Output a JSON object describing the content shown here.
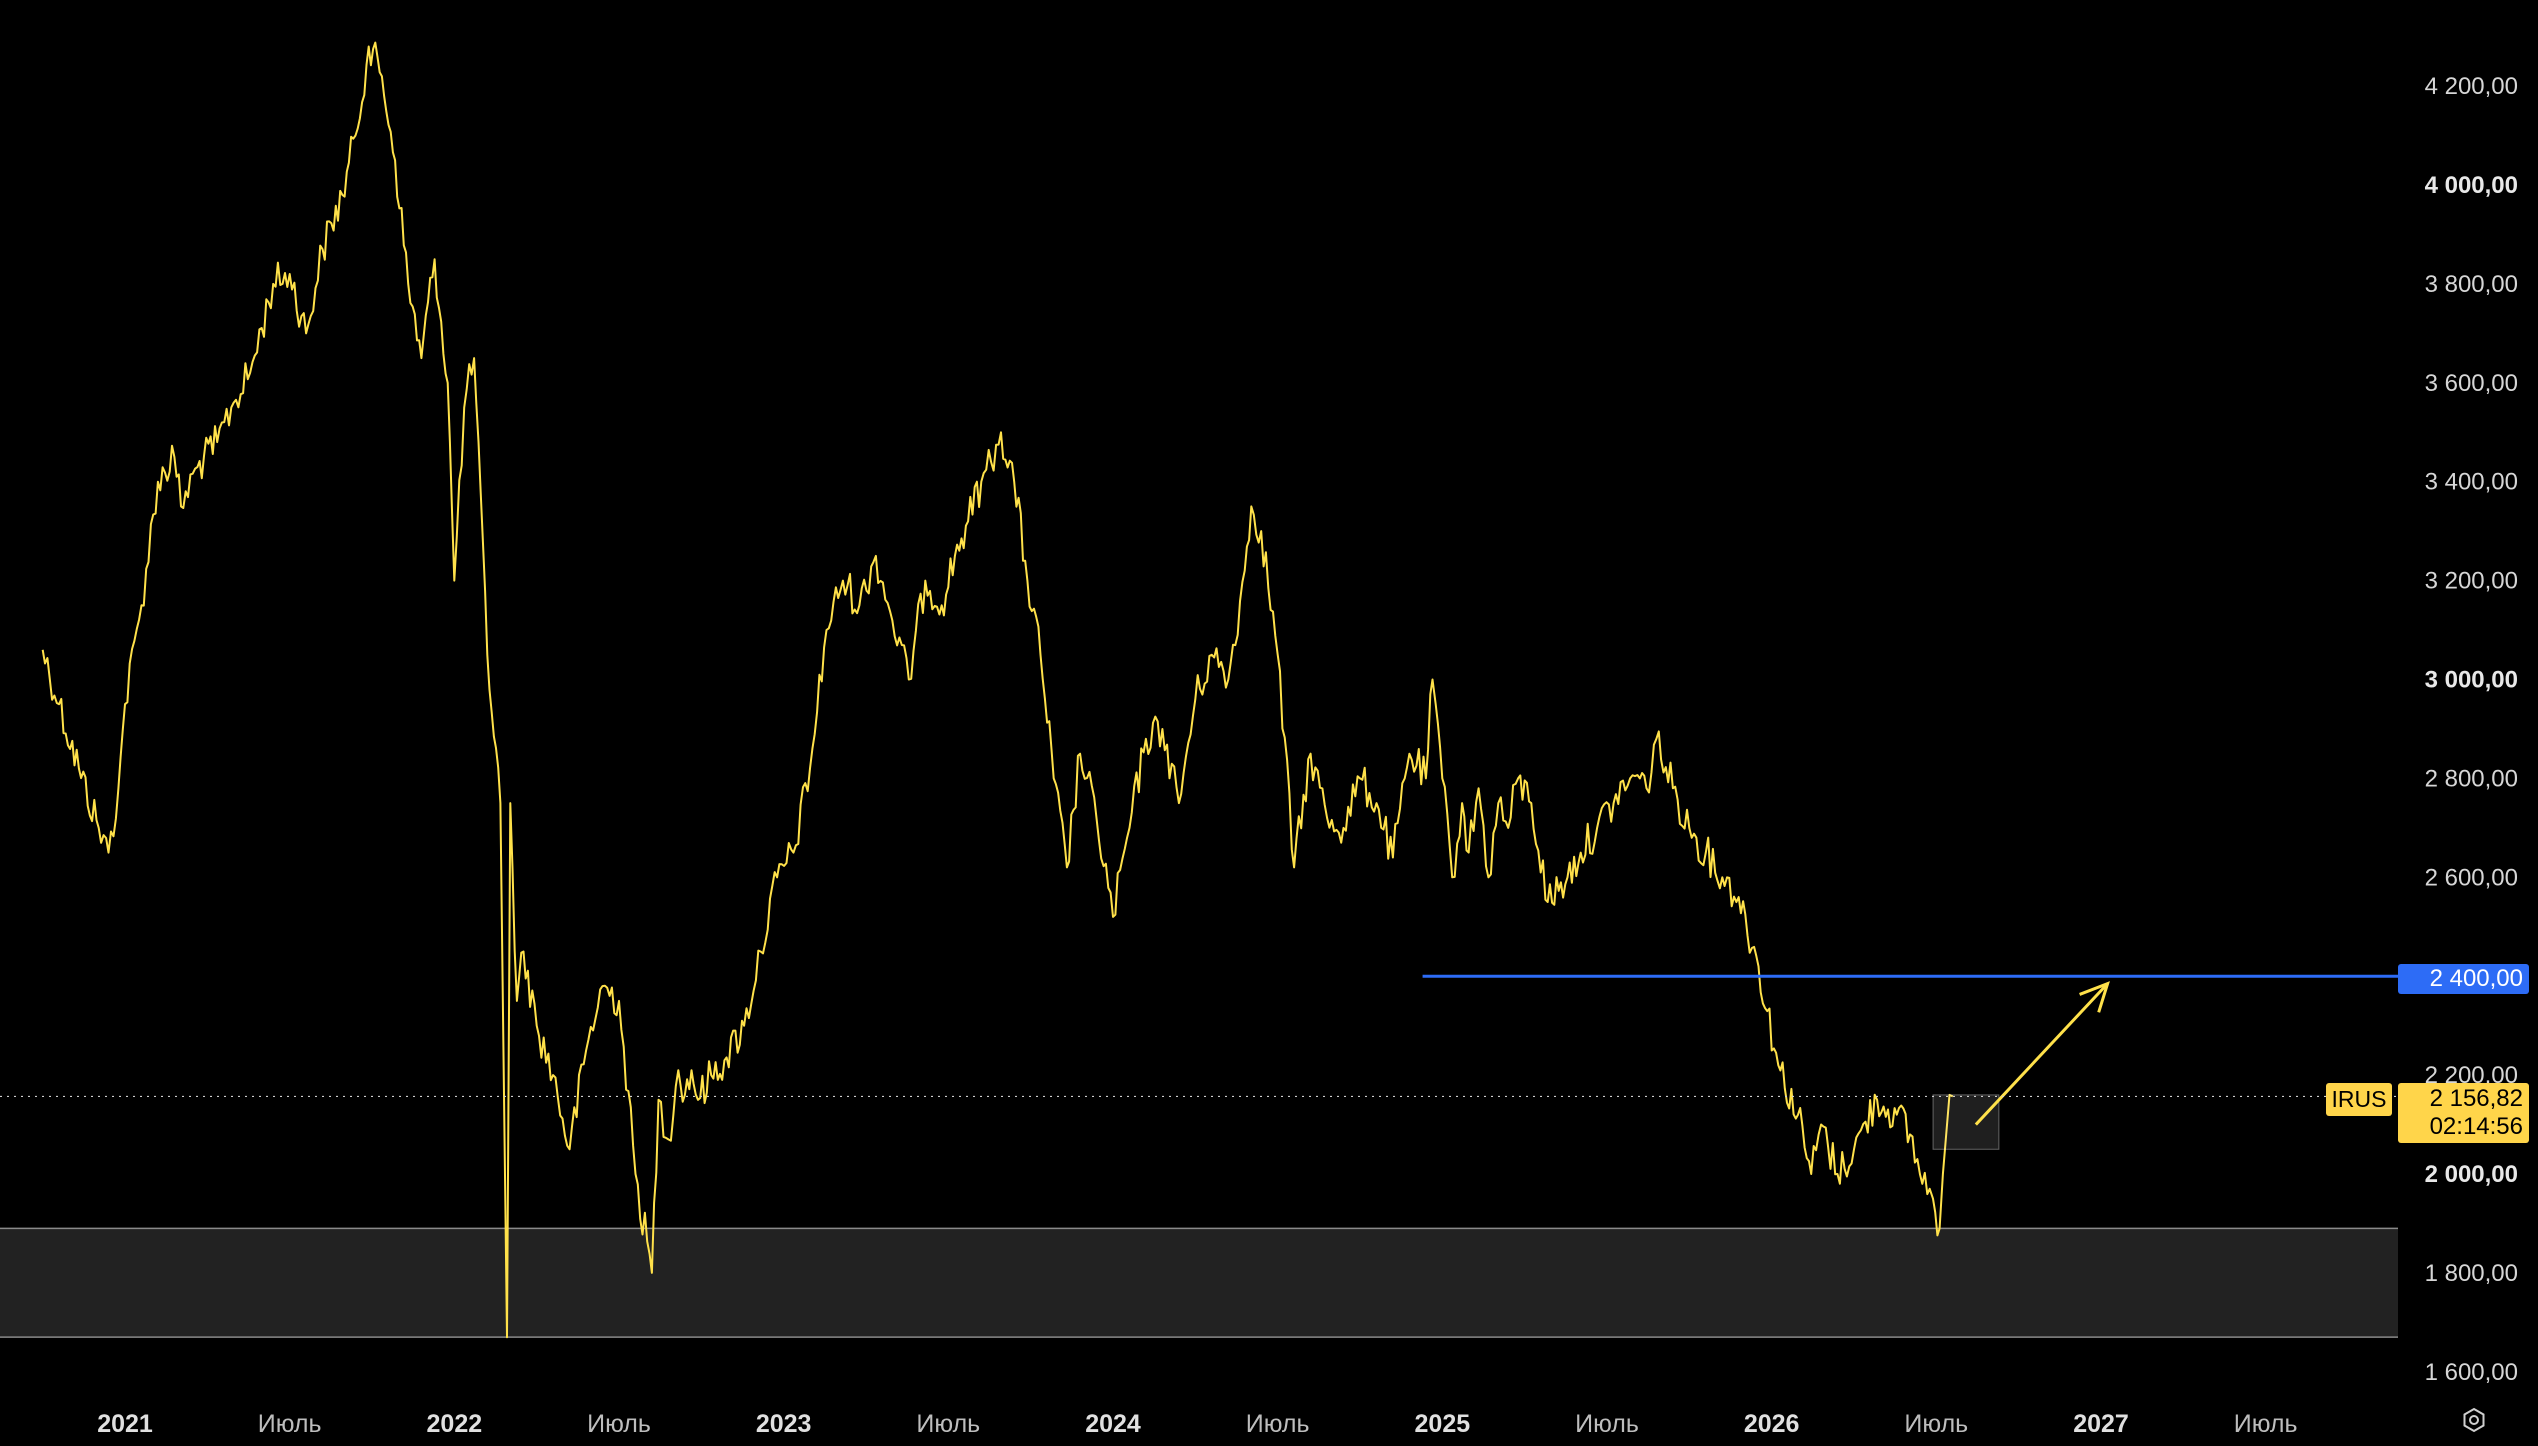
{
  "chart_data": {
    "type": "line",
    "ticker": "IRUS",
    "last_price": "2 156,82",
    "countdown": "02:14:56",
    "level_line": {
      "value": 2400,
      "label": "2 400,00",
      "color": "#2d6cf6"
    },
    "line_color": "#ffe14a",
    "support_zone": [
      1670,
      1890
    ],
    "ylim": [
      1560,
      4290
    ],
    "y_ticks": [
      {
        "value": 4200,
        "label": "4 200,00",
        "bold": false
      },
      {
        "value": 4000,
        "label": "4 000,00",
        "bold": true
      },
      {
        "value": 3800,
        "label": "3 800,00",
        "bold": false
      },
      {
        "value": 3600,
        "label": "3 600,00",
        "bold": false
      },
      {
        "value": 3400,
        "label": "3 400,00",
        "bold": false
      },
      {
        "value": 3200,
        "label": "3 200,00",
        "bold": false
      },
      {
        "value": 3000,
        "label": "3 000,00",
        "bold": true
      },
      {
        "value": 2800,
        "label": "2 800,00",
        "bold": false
      },
      {
        "value": 2600,
        "label": "2 600,00",
        "bold": false
      },
      {
        "value": 2200,
        "label": "2 200,00",
        "bold": false
      },
      {
        "value": 2000,
        "label": "2 000,00",
        "bold": true
      },
      {
        "value": 1800,
        "label": "1 800,00",
        "bold": false
      },
      {
        "value": 1600,
        "label": "1 600,00",
        "bold": false
      }
    ],
    "xlim": [
      2020.75,
      2027.95
    ],
    "x_ticks": [
      {
        "value": 2021.0,
        "label": "2021",
        "bold": true
      },
      {
        "value": 2021.5,
        "label": "Июль",
        "bold": false
      },
      {
        "value": 2022.0,
        "label": "2022",
        "bold": true
      },
      {
        "value": 2022.5,
        "label": "Июль",
        "bold": false
      },
      {
        "value": 2023.0,
        "label": "2023",
        "bold": true
      },
      {
        "value": 2023.5,
        "label": "Июль",
        "bold": false
      },
      {
        "value": 2024.0,
        "label": "2024",
        "bold": true
      },
      {
        "value": 2024.5,
        "label": "Июль",
        "bold": false
      },
      {
        "value": 2025.0,
        "label": "2025",
        "bold": true
      },
      {
        "value": 2025.5,
        "label": "Июль",
        "bold": false
      },
      {
        "value": 2026.0,
        "label": "2026",
        "bold": true
      },
      {
        "value": 2026.5,
        "label": "Июль",
        "bold": false
      },
      {
        "value": 2027.0,
        "label": "2027",
        "bold": true
      },
      {
        "value": 2027.5,
        "label": "Июль",
        "bold": false
      }
    ],
    "x": [
      2020.75,
      2020.8,
      2020.86,
      2020.92,
      2020.95,
      2020.98,
      2021.0,
      2021.05,
      2021.1,
      2021.15,
      2021.17,
      2021.22,
      2021.28,
      2021.33,
      2021.38,
      2021.45,
      2021.5,
      2021.55,
      2021.6,
      2021.66,
      2021.7,
      2021.74,
      2021.78,
      2021.82,
      2021.86,
      2021.9,
      2021.94,
      2021.98,
      2022.0,
      2022.03,
      2022.06,
      2022.1,
      2022.14,
      2022.16,
      2022.17,
      2022.19,
      2022.21,
      2022.25,
      2022.3,
      2022.35,
      2022.4,
      2022.45,
      2022.5,
      2022.55,
      2022.6,
      2022.62,
      2022.65,
      2022.68,
      2022.7,
      2022.72,
      2022.74,
      2022.78,
      2022.82,
      2022.88,
      2022.93,
      2022.98,
      2023.03,
      2023.08,
      2023.13,
      2023.18,
      2023.23,
      2023.28,
      2023.33,
      2023.38,
      2023.43,
      2023.48,
      2023.52,
      2023.56,
      2023.6,
      2023.63,
      2023.66,
      2023.7,
      2023.74,
      2023.78,
      2023.82,
      2023.86,
      2023.9,
      2023.95,
      2024.0,
      2024.05,
      2024.1,
      2024.15,
      2024.2,
      2024.25,
      2024.3,
      2024.35,
      2024.4,
      2024.42,
      2024.45,
      2024.5,
      2024.55,
      2024.6,
      2024.65,
      2024.7,
      2024.75,
      2024.8,
      2024.85,
      2024.9,
      2024.95,
      2024.97,
      2024.98,
      2025.0,
      2025.03,
      2025.06,
      2025.08,
      2025.11,
      2025.14,
      2025.17,
      2025.2,
      2025.23,
      2025.27,
      2025.32,
      2025.38,
      2025.42,
      2025.47,
      2025.52,
      2025.57,
      2025.6,
      2025.62,
      2025.65,
      2025.7,
      2025.75,
      2025.8,
      2025.85,
      2025.9,
      2025.96,
      2026.02,
      2026.08,
      2026.12,
      2026.15,
      2026.2,
      2026.25,
      2026.32,
      2026.38,
      2026.42,
      2026.45,
      2026.48,
      2026.49,
      2026.51,
      2026.52,
      2026.53,
      2026.54,
      2026.55
    ],
    "values": [
      3060,
      2950,
      2820,
      2700,
      2650,
      2780,
      2950,
      3150,
      3400,
      3450,
      3350,
      3430,
      3480,
      3560,
      3620,
      3800,
      3820,
      3700,
      3870,
      3980,
      4100,
      4280,
      4220,
      4050,
      3800,
      3650,
      3850,
      3600,
      3200,
      3550,
      3650,
      3050,
      2750,
      1670,
      2750,
      2350,
      2450,
      2300,
      2200,
      2050,
      2250,
      2380,
      2350,
      2000,
      1800,
      2150,
      2070,
      2210,
      2160,
      2210,
      2150,
      2200,
      2230,
      2300,
      2450,
      2600,
      2650,
      2820,
      3100,
      3200,
      3150,
      3250,
      3120,
      3000,
      3200,
      3150,
      3250,
      3320,
      3400,
      3440,
      3500,
      3400,
      3200,
      3050,
      2800,
      2620,
      2850,
      2720,
      2520,
      2700,
      2880,
      2900,
      2750,
      2960,
      3050,
      3000,
      3220,
      3350,
      3300,
      3050,
      2620,
      2850,
      2720,
      2700,
      2800,
      2750,
      2640,
      2850,
      2800,
      3000,
      2950,
      2800,
      2600,
      2750,
      2650,
      2780,
      2600,
      2750,
      2700,
      2800,
      2750,
      2550,
      2600,
      2650,
      2700,
      2750,
      2800,
      2800,
      2780,
      2880,
      2780,
      2700,
      2650,
      2600,
      2560,
      2420,
      2220,
      2120,
      2000,
      2100,
      2000,
      2050,
      2150,
      2120,
      2080,
      2000,
      1970,
      1950,
      1890,
      2000,
      2080,
      2160,
      2157
    ],
    "arrow": {
      "from": [
        2026.62,
        2100
      ],
      "to": [
        2027.02,
        2385
      ]
    },
    "highlight_box": {
      "x": [
        2026.49,
        2026.69
      ],
      "y": [
        2050,
        2160
      ]
    }
  }
}
